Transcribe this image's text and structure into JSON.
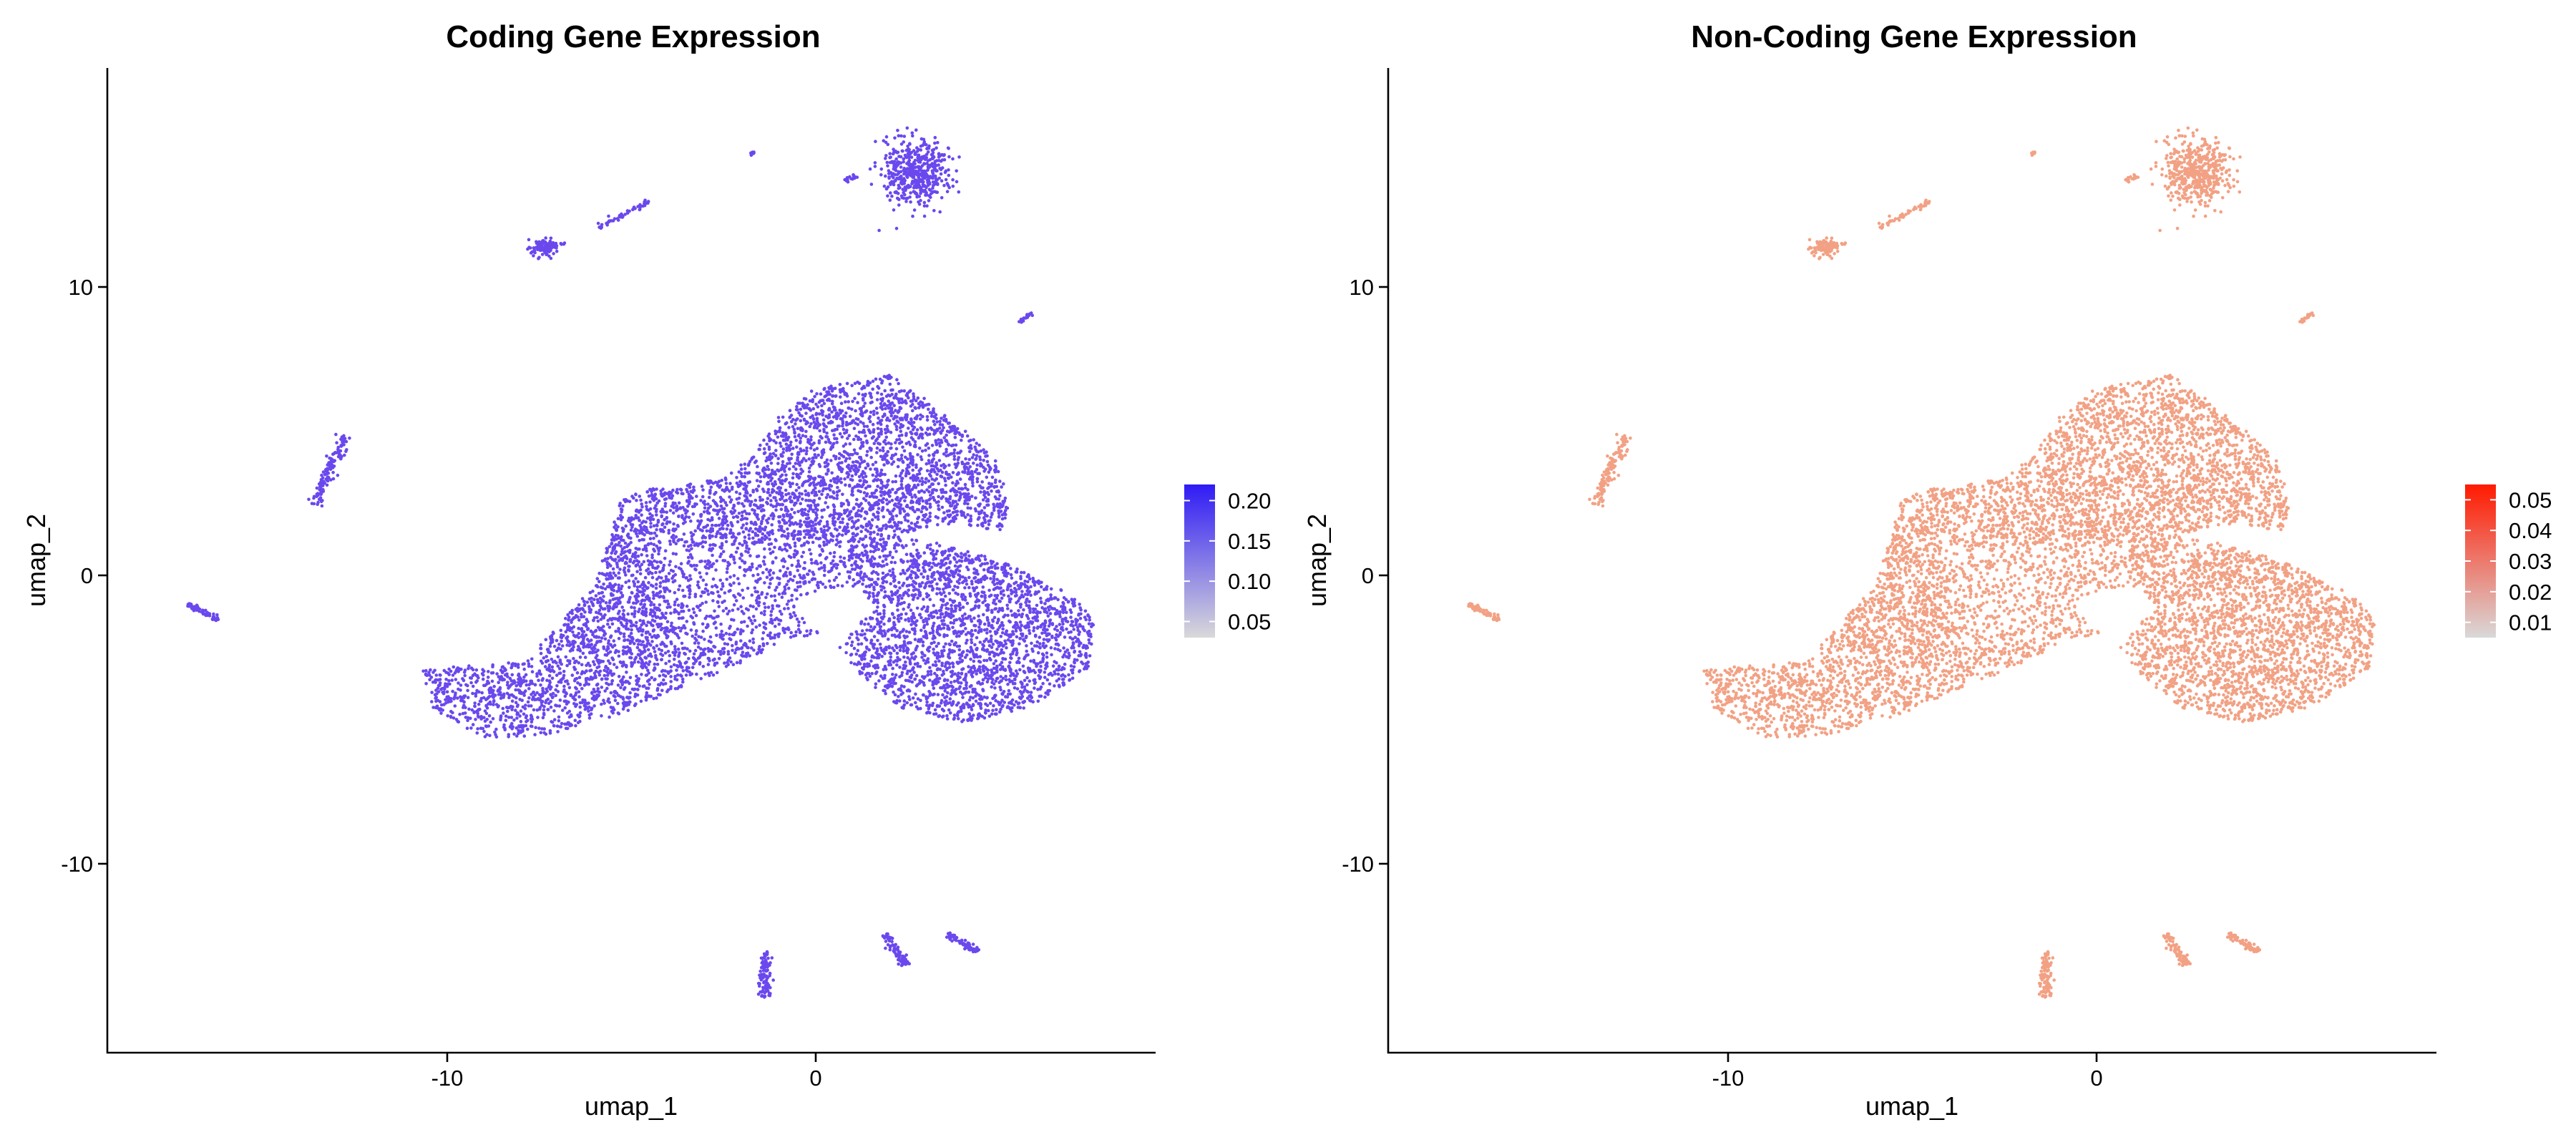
{
  "chart_data": [
    {
      "type": "scatter",
      "title": "Coding Gene Expression",
      "xlabel": "umap_1",
      "ylabel": "umap_2",
      "xlim": [
        -19.5,
        9.5
      ],
      "ylim": [
        -16.5,
        17.5
      ],
      "xticks": [
        -10,
        0
      ],
      "xtick_labels": [
        "-10",
        "0"
      ],
      "yticks": [
        -10,
        0,
        10
      ],
      "ytick_labels": [
        "-10",
        "0",
        "10"
      ],
      "grid": false,
      "legend": {
        "placement": "right",
        "ticks": [
          0.05,
          0.1,
          0.15,
          0.2
        ],
        "tick_labels": [
          "0.05",
          "0.10",
          "0.15",
          "0.20"
        ],
        "range": [
          0.03,
          0.22
        ],
        "color_low": "#d9d9d9",
        "color_high": "#2f1bf5"
      },
      "point_color": "#6a48ee",
      "main_cluster_outline": [
        [
          -10.8,
          -3.2
        ],
        [
          -10.5,
          -4.6
        ],
        [
          -9.2,
          -5.6
        ],
        [
          -7.5,
          -5.6
        ],
        [
          -5.5,
          -4.9
        ],
        [
          -3.6,
          -3.9
        ],
        [
          -2,
          -3.1
        ],
        [
          -0.7,
          -2.2
        ],
        [
          0.5,
          -2.1
        ],
        [
          1.3,
          -3.4
        ],
        [
          2.4,
          -4.6
        ],
        [
          4.2,
          -5.1
        ],
        [
          6,
          -4.6
        ],
        [
          7.7,
          -3.2
        ],
        [
          7.8,
          -1.6
        ],
        [
          7.2,
          -0.7
        ],
        [
          5.2,
          0.5
        ],
        [
          3.5,
          1.1
        ],
        [
          2.4,
          1.3
        ],
        [
          3,
          1.6
        ],
        [
          4,
          1.8
        ],
        [
          5.2,
          1.5
        ],
        [
          5.5,
          2.4
        ],
        [
          5.1,
          3.9
        ],
        [
          3.8,
          5.5
        ],
        [
          2.2,
          6.9
        ],
        [
          0,
          6.4
        ],
        [
          -0.9,
          5.5
        ],
        [
          -1.7,
          4
        ],
        [
          -2.6,
          3.3
        ],
        [
          -4.4,
          3
        ],
        [
          -5.3,
          2.6
        ],
        [
          -5.6,
          1.3
        ],
        [
          -6,
          -0.3
        ],
        [
          -7.2,
          -2
        ],
        [
          -8,
          -3
        ],
        [
          -9,
          -3.1
        ]
      ],
      "hole_outline": [
        [
          0.6,
          -2.3
        ],
        [
          1.8,
          -1.2
        ],
        [
          1.3,
          -0.4
        ],
        [
          0.2,
          -0.5
        ],
        [
          -0.6,
          -1.2
        ]
      ],
      "small_clusters": [
        {
          "name": "cluster-top-right-blob",
          "cx": 2.9,
          "cy": 13.9,
          "rx": 0.9,
          "ry": 1.1,
          "weight": 0.055
        },
        {
          "name": "cluster-top-left-blob",
          "cx": -7.4,
          "cy": 11.3,
          "rx": 0.45,
          "ry": 0.28,
          "weight": 0.012
        },
        {
          "name": "cluster-left-arc",
          "x0": -13.8,
          "y0": 2.4,
          "x1": -12.9,
          "y1": 4.8,
          "w": 0.18,
          "weight": 0.014
        },
        {
          "name": "cluster-far-left-arc",
          "x0": -17.3,
          "y0": -1.0,
          "x1": -16.4,
          "y1": -1.55,
          "w": 0.1,
          "weight": 0.006
        },
        {
          "name": "cluster-top-streak",
          "x0": -5.9,
          "y0": 12.0,
          "x1": -4.5,
          "y1": 12.9,
          "w": 0.1,
          "weight": 0.006
        },
        {
          "name": "cluster-top-mid-streak",
          "x0": 0.9,
          "y0": 13.6,
          "x1": 1.3,
          "y1": 13.8,
          "w": 0.08,
          "weight": 0.002
        },
        {
          "name": "cluster-right-streak",
          "x0": 5.7,
          "y0": 8.7,
          "x1": 6.1,
          "y1": 9.0,
          "w": 0.08,
          "weight": 0.002
        },
        {
          "name": "cluster-bottom-vertical",
          "x0": -1.3,
          "y0": -13.0,
          "x1": -1.3,
          "y1": -14.6,
          "w": 0.17,
          "weight": 0.011
        },
        {
          "name": "cluster-bottom-right-a",
          "x0": 2.0,
          "y0": -12.4,
          "x1": 2.6,
          "y1": -13.5,
          "w": 0.12,
          "weight": 0.008
        },
        {
          "name": "cluster-bottom-right-b",
          "x0": 3.7,
          "y0": -12.4,
          "x1": 4.6,
          "y1": -13.0,
          "w": 0.11,
          "weight": 0.007
        },
        {
          "name": "cluster-small-dot",
          "x0": -1.7,
          "y0": 14.5,
          "x1": -1.6,
          "y1": 14.6,
          "w": 0.05,
          "weight": 0.001
        }
      ]
    },
    {
      "type": "scatter",
      "title": "Non-Coding Gene Expression",
      "xlabel": "umap_1",
      "ylabel": "umap_2",
      "xlim": [
        -19.5,
        9.5
      ],
      "ylim": [
        -16.5,
        17.5
      ],
      "xticks": [
        -10,
        0
      ],
      "xtick_labels": [
        "-10",
        "0"
      ],
      "yticks": [
        -10,
        0,
        10
      ],
      "ytick_labels": [
        "-10",
        "0",
        "10"
      ],
      "grid": false,
      "legend": {
        "placement": "right",
        "ticks": [
          0.01,
          0.02,
          0.03,
          0.04,
          0.05
        ],
        "tick_labels": [
          "0.01",
          "0.02",
          "0.03",
          "0.04",
          "0.05"
        ],
        "range": [
          0.005,
          0.055
        ],
        "color_low": "#d9d9d9",
        "color_high": "#ff1a00"
      },
      "point_color": "#f2a184",
      "main_cluster_outline": [
        [
          -10.8,
          -3.2
        ],
        [
          -10.5,
          -4.6
        ],
        [
          -9.2,
          -5.6
        ],
        [
          -7.5,
          -5.6
        ],
        [
          -5.5,
          -4.9
        ],
        [
          -3.6,
          -3.9
        ],
        [
          -2,
          -3.1
        ],
        [
          -0.7,
          -2.2
        ],
        [
          0.5,
          -2.1
        ],
        [
          1.3,
          -3.4
        ],
        [
          2.4,
          -4.6
        ],
        [
          4.2,
          -5.1
        ],
        [
          6,
          -4.6
        ],
        [
          7.7,
          -3.2
        ],
        [
          7.8,
          -1.6
        ],
        [
          7.2,
          -0.7
        ],
        [
          5.2,
          0.5
        ],
        [
          3.5,
          1.1
        ],
        [
          2.4,
          1.3
        ],
        [
          3,
          1.6
        ],
        [
          4,
          1.8
        ],
        [
          5.2,
          1.5
        ],
        [
          5.5,
          2.4
        ],
        [
          5.1,
          3.9
        ],
        [
          3.8,
          5.5
        ],
        [
          2.2,
          6.9
        ],
        [
          0,
          6.4
        ],
        [
          -0.9,
          5.5
        ],
        [
          -1.7,
          4
        ],
        [
          -2.6,
          3.3
        ],
        [
          -4.4,
          3
        ],
        [
          -5.3,
          2.6
        ],
        [
          -5.6,
          1.3
        ],
        [
          -6,
          -0.3
        ],
        [
          -7.2,
          -2
        ],
        [
          -8,
          -3
        ],
        [
          -9,
          -3.1
        ]
      ],
      "hole_outline": [
        [
          0.6,
          -2.3
        ],
        [
          1.8,
          -1.2
        ],
        [
          1.3,
          -0.4
        ],
        [
          0.2,
          -0.5
        ],
        [
          -0.6,
          -1.2
        ]
      ],
      "small_clusters": [
        {
          "name": "cluster-top-right-blob",
          "cx": 2.9,
          "cy": 13.9,
          "rx": 0.9,
          "ry": 1.1,
          "weight": 0.055
        },
        {
          "name": "cluster-top-left-blob",
          "cx": -7.4,
          "cy": 11.3,
          "rx": 0.45,
          "ry": 0.28,
          "weight": 0.012
        },
        {
          "name": "cluster-left-arc",
          "x0": -13.8,
          "y0": 2.4,
          "x1": -12.9,
          "y1": 4.8,
          "w": 0.18,
          "weight": 0.014
        },
        {
          "name": "cluster-far-left-arc",
          "x0": -17.3,
          "y0": -1.0,
          "x1": -16.4,
          "y1": -1.55,
          "w": 0.1,
          "weight": 0.006
        },
        {
          "name": "cluster-top-streak",
          "x0": -5.9,
          "y0": 12.0,
          "x1": -4.5,
          "y1": 12.9,
          "w": 0.1,
          "weight": 0.006
        },
        {
          "name": "cluster-top-mid-streak",
          "x0": 0.9,
          "y0": 13.6,
          "x1": 1.3,
          "y1": 13.8,
          "w": 0.08,
          "weight": 0.002
        },
        {
          "name": "cluster-right-streak",
          "x0": 5.7,
          "y0": 8.7,
          "x1": 6.1,
          "y1": 9.0,
          "w": 0.08,
          "weight": 0.002
        },
        {
          "name": "cluster-bottom-vertical",
          "x0": -1.3,
          "y0": -13.0,
          "x1": -1.3,
          "y1": -14.6,
          "w": 0.17,
          "weight": 0.011
        },
        {
          "name": "cluster-bottom-right-a",
          "x0": 2.0,
          "y0": -12.4,
          "x1": 2.6,
          "y1": -13.5,
          "w": 0.12,
          "weight": 0.008
        },
        {
          "name": "cluster-bottom-right-b",
          "x0": 3.7,
          "y0": -12.4,
          "x1": 4.6,
          "y1": -13.0,
          "w": 0.11,
          "weight": 0.007
        },
        {
          "name": "cluster-small-dot",
          "x0": -1.7,
          "y0": 14.5,
          "x1": -1.6,
          "y1": 14.6,
          "w": 0.05,
          "weight": 0.001
        }
      ]
    }
  ]
}
